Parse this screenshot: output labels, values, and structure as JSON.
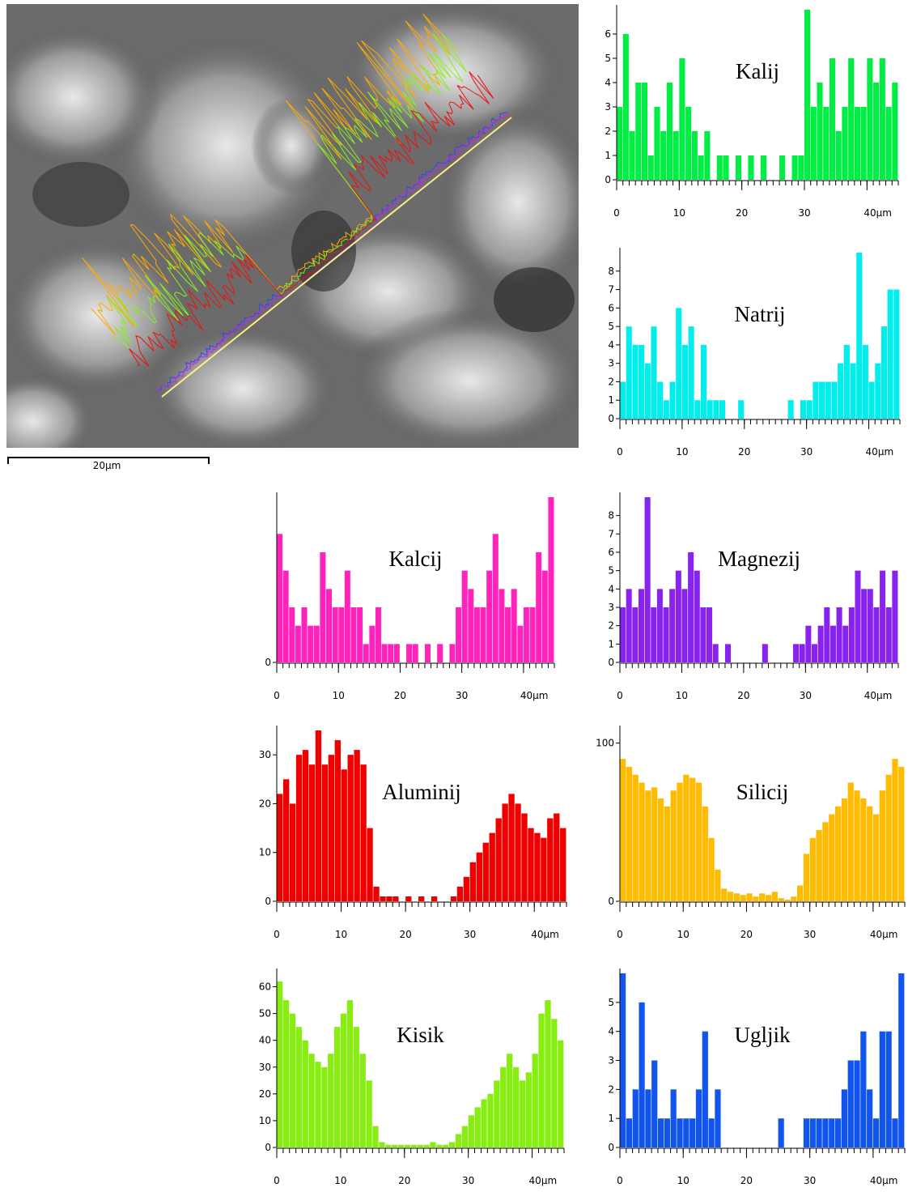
{
  "scale_bar": "20µm",
  "chart_data": [
    {
      "type": "bar",
      "title": "Kalij",
      "color": "#00ee44",
      "xlim": [
        0,
        45
      ],
      "ylim": [
        0,
        7
      ],
      "yticks": [
        0,
        1,
        2,
        3,
        4,
        5,
        6
      ],
      "xticks": [
        0,
        10,
        20,
        30,
        {
          "value": 40,
          "label": "40µm"
        }
      ],
      "x": [
        0,
        1,
        2,
        3,
        4,
        5,
        6,
        7,
        8,
        9,
        10,
        11,
        12,
        13,
        14,
        15,
        16,
        17,
        18,
        19,
        20,
        21,
        22,
        23,
        24,
        25,
        26,
        27,
        28,
        29,
        30,
        31,
        32,
        33,
        34,
        35,
        36,
        37,
        38,
        39,
        40,
        41,
        42,
        43,
        44
      ],
      "values": [
        3,
        6,
        2,
        4,
        4,
        1,
        3,
        2,
        4,
        2,
        5,
        3,
        2,
        1,
        2,
        0,
        1,
        1,
        0,
        1,
        0,
        1,
        0,
        1,
        0,
        0,
        1,
        0,
        1,
        1,
        7,
        3,
        4,
        3,
        5,
        2,
        3,
        5,
        3,
        3,
        5,
        4,
        5,
        3,
        4
      ]
    },
    {
      "type": "bar",
      "title": "Natrij",
      "color": "#00eeee",
      "xlim": [
        0,
        45
      ],
      "ylim": [
        0,
        9
      ],
      "yticks": [
        0,
        1,
        2,
        3,
        4,
        5,
        6,
        7,
        8
      ],
      "xticks": [
        0,
        10,
        20,
        30,
        {
          "value": 40,
          "label": "40µm"
        }
      ],
      "x": [
        0,
        1,
        2,
        3,
        4,
        5,
        6,
        7,
        8,
        9,
        10,
        11,
        12,
        13,
        14,
        15,
        16,
        17,
        18,
        19,
        20,
        21,
        22,
        23,
        24,
        25,
        26,
        27,
        28,
        29,
        30,
        31,
        32,
        33,
        34,
        35,
        36,
        37,
        38,
        39,
        40,
        41,
        42,
        43,
        44
      ],
      "values": [
        2,
        5,
        4,
        4,
        3,
        5,
        2,
        1,
        2,
        6,
        4,
        5,
        1,
        4,
        1,
        1,
        1,
        0,
        0,
        1,
        0,
        0,
        0,
        0,
        0,
        0,
        0,
        1,
        0,
        1,
        1,
        2,
        2,
        2,
        2,
        3,
        4,
        3,
        9,
        4,
        2,
        3,
        5,
        7,
        7
      ]
    },
    {
      "type": "bar",
      "title": "Kalcij",
      "color": "#ff22bb",
      "xlim": [
        0,
        45
      ],
      "ylim": [
        0,
        9
      ],
      "yticks": [
        0
      ],
      "xticks": [
        0,
        10,
        20,
        30,
        {
          "value": 40,
          "label": "40µm"
        }
      ],
      "x": [
        0,
        1,
        2,
        3,
        4,
        5,
        6,
        7,
        8,
        9,
        10,
        11,
        12,
        13,
        14,
        15,
        16,
        17,
        18,
        19,
        20,
        21,
        22,
        23,
        24,
        25,
        26,
        27,
        28,
        29,
        30,
        31,
        32,
        33,
        34,
        35,
        36,
        37,
        38,
        39,
        40,
        41,
        42,
        43,
        44
      ],
      "values": [
        7,
        5,
        3,
        2,
        3,
        2,
        2,
        6,
        4,
        3,
        3,
        5,
        3,
        3,
        1,
        2,
        3,
        1,
        1,
        1,
        0,
        1,
        1,
        0,
        1,
        0,
        1,
        0,
        1,
        3,
        5,
        4,
        3,
        3,
        5,
        7,
        4,
        3,
        4,
        2,
        3,
        3,
        6,
        5,
        9
      ]
    },
    {
      "type": "bar",
      "title": "Magnezij",
      "color": "#8822ee",
      "xlim": [
        0,
        45
      ],
      "ylim": [
        0,
        9
      ],
      "yticks": [
        0,
        1,
        2,
        3,
        4,
        5,
        6,
        7,
        8
      ],
      "xticks": [
        0,
        10,
        20,
        30,
        {
          "value": 40,
          "label": "40µm"
        }
      ],
      "x": [
        0,
        1,
        2,
        3,
        4,
        5,
        6,
        7,
        8,
        9,
        10,
        11,
        12,
        13,
        14,
        15,
        16,
        17,
        18,
        19,
        20,
        21,
        22,
        23,
        24,
        25,
        26,
        27,
        28,
        29,
        30,
        31,
        32,
        33,
        34,
        35,
        36,
        37,
        38,
        39,
        40,
        41,
        42,
        43,
        44
      ],
      "values": [
        3,
        4,
        3,
        4,
        9,
        3,
        4,
        3,
        4,
        5,
        4,
        6,
        5,
        3,
        3,
        1,
        0,
        1,
        0,
        0,
        0,
        0,
        0,
        1,
        0,
        0,
        0,
        0,
        1,
        1,
        2,
        1,
        2,
        3,
        2,
        3,
        2,
        3,
        5,
        4,
        4,
        3,
        5,
        3,
        5
      ]
    },
    {
      "type": "bar",
      "title": "Aluminij",
      "color": "#ee0000",
      "xlim": [
        0,
        45
      ],
      "ylim": [
        0,
        35
      ],
      "yticks": [
        0,
        10,
        20,
        30
      ],
      "xticks": [
        0,
        10,
        20,
        30,
        {
          "value": 40,
          "label": "40µm"
        }
      ],
      "x": [
        0,
        1,
        2,
        3,
        4,
        5,
        6,
        7,
        8,
        9,
        10,
        11,
        12,
        13,
        14,
        15,
        16,
        17,
        18,
        19,
        20,
        21,
        22,
        23,
        24,
        25,
        26,
        27,
        28,
        29,
        30,
        31,
        32,
        33,
        34,
        35,
        36,
        37,
        38,
        39,
        40,
        41,
        42,
        43,
        44
      ],
      "values": [
        22,
        25,
        20,
        30,
        31,
        28,
        35,
        28,
        30,
        33,
        27,
        30,
        31,
        28,
        15,
        3,
        1,
        1,
        1,
        0,
        1,
        0,
        1,
        0,
        1,
        0,
        0,
        1,
        3,
        5,
        8,
        10,
        12,
        14,
        17,
        20,
        22,
        20,
        18,
        15,
        14,
        13,
        17,
        18,
        15
      ]
    },
    {
      "type": "bar",
      "title": "Silicij",
      "color": "#ffbb00",
      "xlim": [
        0,
        45
      ],
      "ylim": [
        0,
        108
      ],
      "yticks": [
        0,
        100
      ],
      "xticks": [
        0,
        10,
        20,
        30,
        {
          "value": 40,
          "label": "40µm"
        }
      ],
      "x": [
        0,
        1,
        2,
        3,
        4,
        5,
        6,
        7,
        8,
        9,
        10,
        11,
        12,
        13,
        14,
        15,
        16,
        17,
        18,
        19,
        20,
        21,
        22,
        23,
        24,
        25,
        26,
        27,
        28,
        29,
        30,
        31,
        32,
        33,
        34,
        35,
        36,
        37,
        38,
        39,
        40,
        41,
        42,
        43,
        44
      ],
      "values": [
        90,
        85,
        80,
        75,
        70,
        72,
        65,
        60,
        70,
        75,
        80,
        78,
        75,
        60,
        40,
        20,
        8,
        6,
        5,
        4,
        5,
        3,
        5,
        4,
        6,
        2,
        1,
        3,
        10,
        30,
        40,
        45,
        50,
        55,
        60,
        65,
        75,
        70,
        65,
        60,
        55,
        70,
        80,
        90,
        85
      ]
    },
    {
      "type": "bar",
      "title": "Kisik",
      "color": "#88ee11",
      "xlim": [
        0,
        45
      ],
      "ylim": [
        0,
        65
      ],
      "yticks": [
        0,
        10,
        20,
        30,
        40,
        50,
        60
      ],
      "xticks": [
        0,
        10,
        20,
        30,
        {
          "value": 40,
          "label": "40µm"
        }
      ],
      "x": [
        0,
        1,
        2,
        3,
        4,
        5,
        6,
        7,
        8,
        9,
        10,
        11,
        12,
        13,
        14,
        15,
        16,
        17,
        18,
        19,
        20,
        21,
        22,
        23,
        24,
        25,
        26,
        27,
        28,
        29,
        30,
        31,
        32,
        33,
        34,
        35,
        36,
        37,
        38,
        39,
        40,
        41,
        42,
        43,
        44
      ],
      "values": [
        62,
        55,
        50,
        45,
        40,
        35,
        32,
        30,
        35,
        45,
        50,
        55,
        45,
        35,
        25,
        8,
        2,
        1,
        1,
        1,
        1,
        1,
        1,
        1,
        2,
        1,
        1,
        2,
        5,
        8,
        12,
        15,
        18,
        20,
        25,
        30,
        35,
        30,
        25,
        28,
        35,
        50,
        55,
        48,
        40
      ]
    },
    {
      "type": "bar",
      "title": "Ugljik",
      "color": "#1155ee",
      "xlim": [
        0,
        45
      ],
      "ylim": [
        0,
        6
      ],
      "yticks": [
        0,
        1,
        2,
        3,
        4,
        5
      ],
      "xticks": [
        0,
        10,
        20,
        30,
        {
          "value": 40,
          "label": "40µm"
        }
      ],
      "x": [
        0,
        1,
        2,
        3,
        4,
        5,
        6,
        7,
        8,
        9,
        10,
        11,
        12,
        13,
        14,
        15,
        16,
        17,
        18,
        19,
        20,
        21,
        22,
        23,
        24,
        25,
        26,
        27,
        28,
        29,
        30,
        31,
        32,
        33,
        34,
        35,
        36,
        37,
        38,
        39,
        40,
        41,
        42,
        43,
        44
      ],
      "values": [
        6,
        1,
        2,
        5,
        2,
        3,
        1,
        1,
        2,
        1,
        1,
        1,
        2,
        4,
        1,
        2,
        0,
        0,
        0,
        0,
        0,
        0,
        0,
        0,
        0,
        1,
        0,
        0,
        0,
        1,
        1,
        1,
        1,
        1,
        1,
        2,
        3,
        3,
        4,
        2,
        1,
        4,
        4,
        1,
        6
      ]
    }
  ]
}
